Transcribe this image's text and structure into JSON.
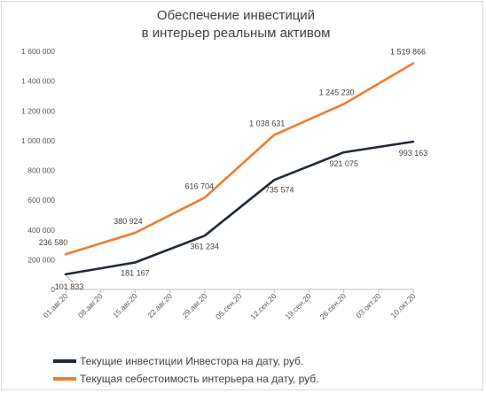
{
  "chart_data": {
    "type": "line",
    "title_lines": [
      "Обеспечение инвестиций",
      "в интерьер реальным активом"
    ],
    "categories": [
      "01.авг.20",
      "08.авг.20",
      "15.авг.20",
      "22.авг.20",
      "29.авг.20",
      "05.сен.20",
      "12.сен.20",
      "19.сен.20",
      "26.сен.20",
      "03.окт.20",
      "10.окт.20"
    ],
    "y_ticks": [
      "0",
      "200 000",
      "400 000",
      "600 000",
      "800 000",
      "1 000 000",
      "1 200 000",
      "1 400 000",
      "1 600 000"
    ],
    "ylim": [
      0,
      1600000
    ],
    "grid": false,
    "legend_position": "bottom",
    "series": [
      {
        "name": "Текущие инвестиции Инвестора на дату, руб.",
        "color": "#1f2a36",
        "points": [
          {
            "x": 0,
            "y": 101833,
            "label": "101 833"
          },
          {
            "x": 2,
            "y": 181167,
            "label": "181 167"
          },
          {
            "x": 4,
            "y": 361234,
            "label": "361 234"
          },
          {
            "x": 6,
            "y": 735574,
            "label": "735 574"
          },
          {
            "x": 8,
            "y": 921075,
            "label": "921 075"
          },
          {
            "x": 10,
            "y": 993163,
            "label": "993 163"
          }
        ]
      },
      {
        "name": "Текущая себестоимость интерьера на дату, руб.",
        "color": "#ed7d31",
        "points": [
          {
            "x": 0,
            "y": 236580,
            "label": "236 580"
          },
          {
            "x": 2,
            "y": 380924,
            "label": "380 924"
          },
          {
            "x": 4,
            "y": 616704,
            "label": "616 704"
          },
          {
            "x": 6,
            "y": 1038631,
            "label": "1 038 631"
          },
          {
            "x": 8,
            "y": 1245230,
            "label": "1 245 230"
          },
          {
            "x": 10,
            "y": 1519866,
            "label": "1 519 866"
          }
        ]
      }
    ]
  }
}
